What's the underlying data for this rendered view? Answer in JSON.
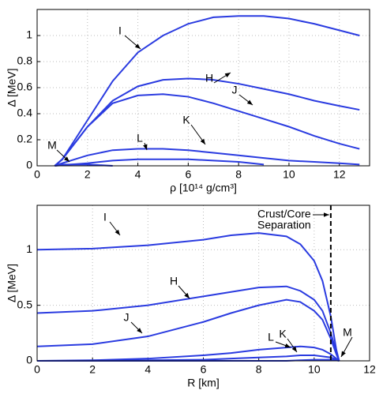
{
  "chart_data": [
    {
      "type": "line",
      "xlabel": "ρ [10¹⁴ g/cm³]",
      "ylabel": "Δ [MeV]",
      "x": [
        0.7,
        1,
        2,
        3,
        4,
        5,
        6,
        7,
        8,
        9,
        10,
        11,
        12,
        12.8
      ],
      "series": [
        {
          "name": "I",
          "color": "#2a3be0",
          "values": [
            0,
            0.05,
            0.35,
            0.65,
            0.87,
            1.0,
            1.09,
            1.14,
            1.15,
            1.15,
            1.13,
            1.09,
            1.04,
            1.0
          ]
        },
        {
          "name": "H",
          "color": "#2a3be0",
          "values": [
            0,
            0.05,
            0.3,
            0.5,
            0.61,
            0.66,
            0.67,
            0.66,
            0.63,
            0.59,
            0.55,
            0.5,
            0.46,
            0.43
          ]
        },
        {
          "name": "J",
          "color": "#2a3be0",
          "values": [
            0,
            0.05,
            0.3,
            0.48,
            0.54,
            0.55,
            0.53,
            0.48,
            0.42,
            0.36,
            0.3,
            0.23,
            0.17,
            0.13
          ]
        },
        {
          "name": "K",
          "color": "#2a3be0",
          "values": [
            0,
            0.02,
            0.08,
            0.12,
            0.13,
            0.13,
            0.12,
            0.1,
            0.08,
            0.06,
            0.04,
            0.03,
            0.02,
            0.01
          ]
        },
        {
          "name": "L",
          "color": "#2a3be0",
          "values": [
            0,
            0.005,
            0.02,
            0.04,
            0.05,
            0.05,
            0.05,
            0.04,
            0.03,
            0.01,
            null,
            null,
            null,
            null
          ]
        },
        {
          "name": "M",
          "color": "#2a3be0",
          "values": [
            0,
            0.01,
            0.01,
            0,
            null,
            null,
            null,
            null,
            null,
            null,
            null,
            null,
            null,
            null
          ]
        }
      ],
      "xlim": [
        0,
        13.2
      ],
      "ylim": [
        0,
        1.2
      ],
      "xticks": [
        0,
        2,
        4,
        6,
        8,
        10,
        12
      ],
      "yticks": [
        0,
        0.2,
        0.4,
        0.6,
        0.8,
        1
      ],
      "grid": true
    },
    {
      "type": "line",
      "xlabel": "R [km]",
      "ylabel": "Δ [MeV]",
      "x": [
        0,
        2,
        4,
        6,
        7,
        8,
        9,
        9.5,
        10,
        10.3,
        10.6,
        10.8,
        10.9
      ],
      "series": [
        {
          "name": "I",
          "color": "#2a3be0",
          "values": [
            1.0,
            1.01,
            1.04,
            1.09,
            1.13,
            1.15,
            1.12,
            1.05,
            0.9,
            0.72,
            0.4,
            0.1,
            0
          ]
        },
        {
          "name": "H",
          "color": "#2a3be0",
          "values": [
            0.43,
            0.45,
            0.5,
            0.58,
            0.62,
            0.66,
            0.67,
            0.63,
            0.55,
            0.45,
            0.25,
            0.08,
            0
          ]
        },
        {
          "name": "J",
          "color": "#2a3be0",
          "values": [
            0.13,
            0.15,
            0.22,
            0.35,
            0.43,
            0.5,
            0.55,
            0.53,
            0.45,
            0.37,
            0.2,
            0.06,
            0
          ]
        },
        {
          "name": "K",
          "color": "#2a3be0",
          "values": [
            0,
            0.005,
            0.02,
            0.05,
            0.07,
            0.1,
            0.12,
            0.13,
            0.12,
            0.1,
            0.06,
            0.02,
            0
          ]
        },
        {
          "name": "L",
          "color": "#2a3be0",
          "values": [
            0,
            0,
            0.005,
            0.01,
            0.02,
            0.03,
            0.04,
            0.05,
            0.05,
            0.04,
            0.03,
            0.01,
            0
          ]
        },
        {
          "name": "M",
          "color": "#2a3be0",
          "values": [
            0,
            0,
            0,
            0,
            0,
            0,
            0,
            0.005,
            0.01,
            0.01,
            0.01,
            0.005,
            0
          ]
        }
      ],
      "xlim": [
        0,
        12
      ],
      "ylim": [
        0,
        1.4
      ],
      "xticks": [
        0,
        2,
        4,
        6,
        8,
        10,
        12
      ],
      "yticks": [
        0,
        0.5,
        1
      ],
      "grid": true,
      "vline": 10.6,
      "annotations": [
        "Crust/Core",
        "Separation"
      ]
    }
  ]
}
